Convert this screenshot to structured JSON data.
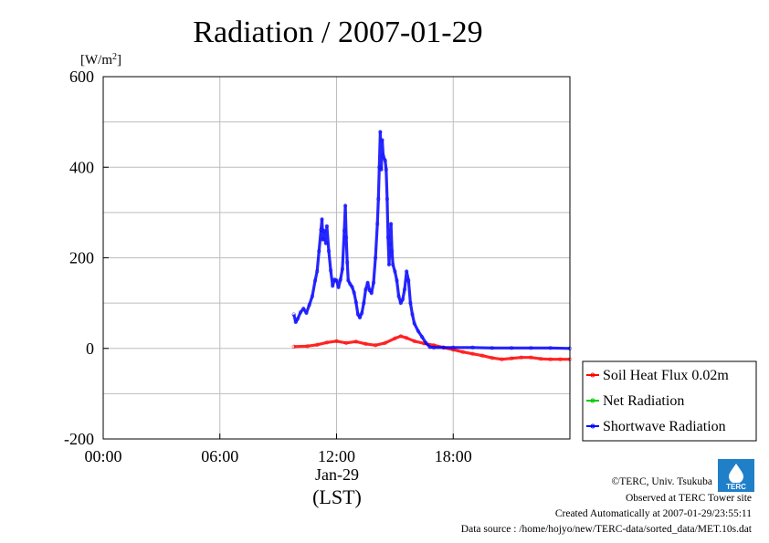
{
  "chart_data": {
    "type": "line",
    "title": "Radiation / 2007-01-29",
    "ylabel_unit_base": "[W/m",
    "ylabel_unit_sup": "2",
    "ylabel_unit_close": "]",
    "xlabel": "(LST)",
    "x_date_label": "Jan-29",
    "x_ticks": [
      "00:00",
      "06:00",
      "12:00",
      "18:00"
    ],
    "x_tick_hours": [
      0,
      6,
      12,
      18
    ],
    "xlim_hours": [
      0,
      24
    ],
    "y_ticks": [
      "-200",
      "0",
      "200",
      "400",
      "600"
    ],
    "y_tick_values": [
      -200,
      0,
      200,
      400,
      600
    ],
    "ylim": [
      -200,
      600
    ],
    "grid": true,
    "legend_position": "right",
    "series": [
      {
        "name": "Soil Heat Flux 0.02m",
        "color": "#ff0000",
        "points": [
          [
            9.8,
            4
          ],
          [
            10.5,
            5
          ],
          [
            11,
            8
          ],
          [
            11.5,
            13
          ],
          [
            12,
            16
          ],
          [
            12.5,
            12
          ],
          [
            13,
            15
          ],
          [
            13.5,
            10
          ],
          [
            14,
            7
          ],
          [
            14.5,
            12
          ],
          [
            15,
            22
          ],
          [
            15.3,
            27
          ],
          [
            15.6,
            23
          ],
          [
            16,
            16
          ],
          [
            16.5,
            11
          ],
          [
            17,
            7
          ],
          [
            17.5,
            2
          ],
          [
            18,
            -3
          ],
          [
            18.5,
            -8
          ],
          [
            19,
            -12
          ],
          [
            19.5,
            -16
          ],
          [
            20,
            -21
          ],
          [
            20.5,
            -24
          ],
          [
            21,
            -22
          ],
          [
            21.5,
            -20
          ],
          [
            22,
            -20
          ],
          [
            22.5,
            -23
          ],
          [
            23,
            -24
          ],
          [
            23.5,
            -24
          ],
          [
            24,
            -24
          ]
        ]
      },
      {
        "name": "Net Radiation",
        "color": "#00cc00",
        "points": []
      },
      {
        "name": "Shortwave Radiation",
        "color": "#0000ff",
        "points": [
          [
            9.8,
            75
          ],
          [
            9.9,
            58
          ],
          [
            10,
            65
          ],
          [
            10.15,
            80
          ],
          [
            10.3,
            88
          ],
          [
            10.45,
            78
          ],
          [
            10.6,
            96
          ],
          [
            10.75,
            115
          ],
          [
            10.9,
            150
          ],
          [
            11,
            170
          ],
          [
            11.1,
            215
          ],
          [
            11.2,
            262
          ],
          [
            11.25,
            285
          ],
          [
            11.3,
            240
          ],
          [
            11.35,
            260
          ],
          [
            11.45,
            232
          ],
          [
            11.5,
            270
          ],
          [
            11.6,
            215
          ],
          [
            11.7,
            172
          ],
          [
            11.8,
            138
          ],
          [
            11.9,
            152
          ],
          [
            12,
            150
          ],
          [
            12.1,
            135
          ],
          [
            12.2,
            152
          ],
          [
            12.3,
            175
          ],
          [
            12.4,
            260
          ],
          [
            12.45,
            315
          ],
          [
            12.5,
            245
          ],
          [
            12.55,
            190
          ],
          [
            12.6,
            150
          ],
          [
            12.7,
            142
          ],
          [
            12.8,
            136
          ],
          [
            12.9,
            123
          ],
          [
            13,
            102
          ],
          [
            13.1,
            75
          ],
          [
            13.2,
            68
          ],
          [
            13.3,
            78
          ],
          [
            13.4,
            100
          ],
          [
            13.5,
            130
          ],
          [
            13.6,
            145
          ],
          [
            13.7,
            128
          ],
          [
            13.8,
            122
          ],
          [
            13.9,
            145
          ],
          [
            14,
            200
          ],
          [
            14.1,
            275
          ],
          [
            14.15,
            330
          ],
          [
            14.2,
            400
          ],
          [
            14.25,
            478
          ],
          [
            14.3,
            395
          ],
          [
            14.35,
            460
          ],
          [
            14.4,
            425
          ],
          [
            14.5,
            415
          ],
          [
            14.55,
            395
          ],
          [
            14.6,
            330
          ],
          [
            14.65,
            245
          ],
          [
            14.7,
            185
          ],
          [
            14.75,
            230
          ],
          [
            14.8,
            275
          ],
          [
            14.85,
            215
          ],
          [
            14.9,
            185
          ],
          [
            15,
            170
          ],
          [
            15.1,
            150
          ],
          [
            15.2,
            115
          ],
          [
            15.3,
            100
          ],
          [
            15.4,
            108
          ],
          [
            15.5,
            130
          ],
          [
            15.6,
            170
          ],
          [
            15.7,
            150
          ],
          [
            15.8,
            100
          ],
          [
            15.9,
            75
          ],
          [
            16,
            55
          ],
          [
            16.2,
            38
          ],
          [
            16.4,
            25
          ],
          [
            16.6,
            12
          ],
          [
            16.8,
            3
          ],
          [
            17,
            2
          ],
          [
            17.5,
            2
          ],
          [
            18,
            2
          ],
          [
            19,
            2
          ],
          [
            20,
            1
          ],
          [
            21,
            1
          ],
          [
            22,
            1
          ],
          [
            23,
            1
          ],
          [
            24,
            0
          ]
        ]
      }
    ]
  },
  "footer": {
    "copyright": "©TERC, Univ. Tsukuba",
    "site": "Observed at TERC Tower site",
    "created": "Created Automatically at 2007-01-29/23:55:11",
    "source": "Data source : /home/hojyo/new/TERC-data/sorted_data/MET.10s.dat",
    "logo_text": "TERC"
  }
}
